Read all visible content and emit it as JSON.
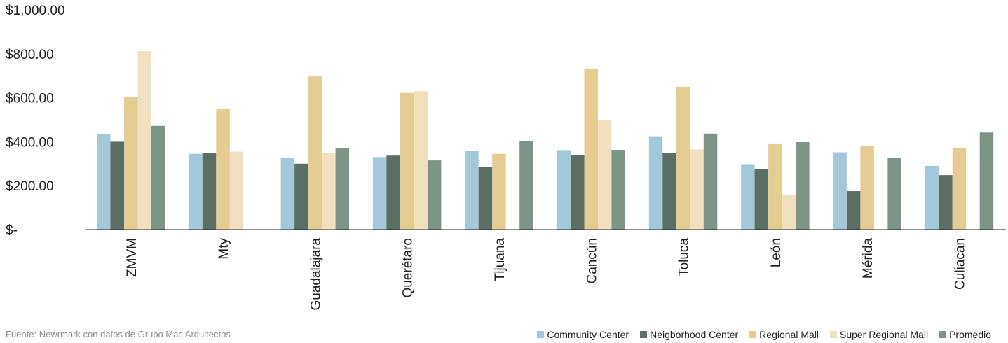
{
  "source": "Fuente: Newrmark con datos de Grupo Mac Arquitectos",
  "chart_data": {
    "type": "bar",
    "categories": [
      "ZMVM",
      "Mty",
      "Guadalajara",
      "Querétaro",
      "Tijuana",
      "Cancún",
      "Toluca",
      "León",
      "Mérida",
      "Culiacan"
    ],
    "series": [
      {
        "name": "Community Center",
        "color": "#a3c8d9",
        "values": [
          435,
          345,
          325,
          330,
          358,
          362,
          425,
          298,
          352,
          290
        ]
      },
      {
        "name": "Neigborhood Center",
        "color": "#5b6e64",
        "values": [
          400,
          347,
          300,
          337,
          285,
          340,
          347,
          275,
          175,
          248
        ]
      },
      {
        "name": "Regional Mall",
        "color": "#e5cc93",
        "values": [
          603,
          550,
          697,
          622,
          345,
          733,
          650,
          392,
          380,
          373
        ]
      },
      {
        "name": "Super Regional Mall",
        "color": "#f0e0bf",
        "values": [
          812,
          355,
          350,
          630,
          null,
          498,
          365,
          160,
          null,
          null
        ]
      },
      {
        "name": "Promedio",
        "color": "#7c9586",
        "values": [
          472,
          null,
          370,
          315,
          402,
          363,
          437,
          398,
          328,
          442
        ]
      }
    ],
    "yticks": [
      {
        "value": 0,
        "label": "$-"
      },
      {
        "value": 200,
        "label": "$200.00"
      },
      {
        "value": 400,
        "label": "$400.00"
      },
      {
        "value": 600,
        "label": "$600.00"
      },
      {
        "value": 800,
        "label": "$800.00"
      },
      {
        "value": 1000,
        "label": "$1,000.00"
      }
    ],
    "ylim": [
      0,
      1000
    ],
    "grid": false,
    "legend_position": "bottom-right"
  }
}
